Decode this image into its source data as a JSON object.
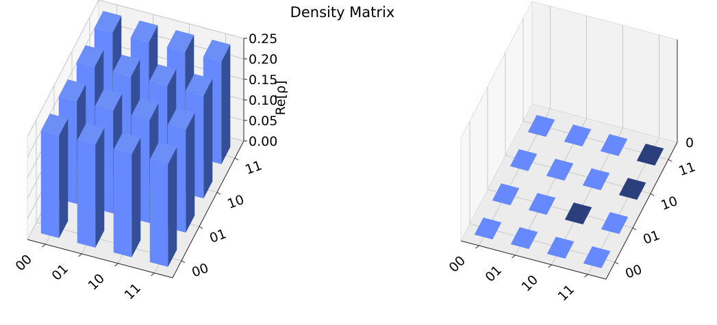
{
  "title": "Density Matrix",
  "colors": {
    "bar_top": "#6b8ef7",
    "bar_front": "#6689ff",
    "bar_side": "#344f97",
    "tile_positive": "#6689ff",
    "tile_negative": "#2b3f7c",
    "pane": "#f2f2f2",
    "grid": "#c8c8c8"
  },
  "chart_data": [
    {
      "type": "bar3d",
      "component": "real",
      "zlabel": "Re[ρ]",
      "xticklabels": [
        "00",
        "01",
        "10",
        "11"
      ],
      "yticklabels": [
        "00",
        "01",
        "10",
        "11"
      ],
      "zticklabels": [
        "0.00",
        "0.05",
        "0.10",
        "0.15",
        "0.20",
        "0.25"
      ],
      "zlim": [
        0,
        0.25
      ],
      "grid": true,
      "values": [
        [
          0.25,
          0.25,
          0.25,
          0.25
        ],
        [
          0.25,
          0.25,
          0.25,
          0.25
        ],
        [
          0.25,
          0.25,
          0.25,
          0.25
        ],
        [
          0.25,
          0.25,
          0.25,
          0.25
        ]
      ]
    },
    {
      "type": "bar3d",
      "component": "imaginary",
      "zlabel": "",
      "xticklabels": [
        "00",
        "01",
        "10",
        "11"
      ],
      "yticklabels": [
        "00",
        "01",
        "10",
        "11"
      ],
      "zticklabels": [
        "0"
      ],
      "zlim": [
        0,
        0
      ],
      "grid": true,
      "values": [
        [
          0,
          0,
          0,
          0
        ],
        [
          0,
          0,
          0,
          0
        ],
        [
          0,
          -0.0001,
          0,
          0
        ],
        [
          0,
          0,
          -0.0001,
          -0.0001
        ]
      ]
    }
  ]
}
